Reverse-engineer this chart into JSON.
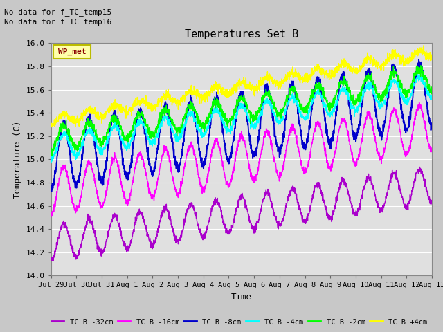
{
  "title": "Temperatures Set B",
  "xlabel": "Time",
  "ylabel": "Temperature (C)",
  "ylim": [
    14.0,
    16.0
  ],
  "yticks": [
    14.0,
    14.2,
    14.4,
    14.6,
    14.8,
    15.0,
    15.2,
    15.4,
    15.6,
    15.8,
    16.0
  ],
  "xtick_labels": [
    "Jul 29",
    "Jul 30",
    "Jul 31",
    "Aug 1",
    "Aug 2",
    "Aug 3",
    "Aug 4",
    "Aug 5",
    "Aug 6",
    "Aug 7",
    "Aug 8",
    "Aug 9",
    "Aug 10",
    "Aug 11",
    "Aug 12",
    "Aug 13"
  ],
  "no_data_text1": "No data for f_TC_temp15",
  "no_data_text2": "No data for f_TC_temp16",
  "wp_met_label": "WP_met",
  "bg_color": "#c8c8c8",
  "plot_bg_color": "#e0e0e0",
  "series": [
    {
      "label": "TC_B -32cm",
      "color": "#aa00cc",
      "lw": 1.0
    },
    {
      "label": "TC_B -16cm",
      "color": "#ff00ff",
      "lw": 1.0
    },
    {
      "label": "TC_B -8cm",
      "color": "#0000cc",
      "lw": 1.3
    },
    {
      "label": "TC_B -4cm",
      "color": "#00ffff",
      "lw": 1.0
    },
    {
      "label": "TC_B -2cm",
      "color": "#00ff00",
      "lw": 1.0
    },
    {
      "label": "TC_B +4cm",
      "color": "#ffff00",
      "lw": 1.0
    }
  ],
  "n_days": 15,
  "pts_per_day": 144,
  "trend_start": [
    14.28,
    14.72,
    15.02,
    15.1,
    15.17,
    15.33
  ],
  "trend_end": [
    14.78,
    15.28,
    15.57,
    15.63,
    15.7,
    15.92
  ],
  "dip_amplitude": [
    0.15,
    0.2,
    0.28,
    0.1,
    0.1,
    0.04
  ],
  "noise_level": [
    0.015,
    0.015,
    0.02,
    0.015,
    0.02,
    0.02
  ]
}
